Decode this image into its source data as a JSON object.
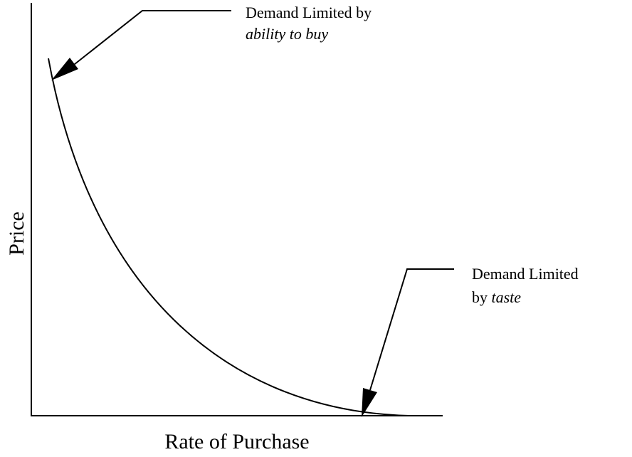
{
  "axes": {
    "x_label": "Rate of Purchase",
    "y_label": "Price"
  },
  "annotations": [
    {
      "line1": "Demand Limited by",
      "emphasis": "ability to buy"
    },
    {
      "line1": "Demand Limited",
      "line2": "by",
      "emphasis": "taste"
    }
  ]
}
